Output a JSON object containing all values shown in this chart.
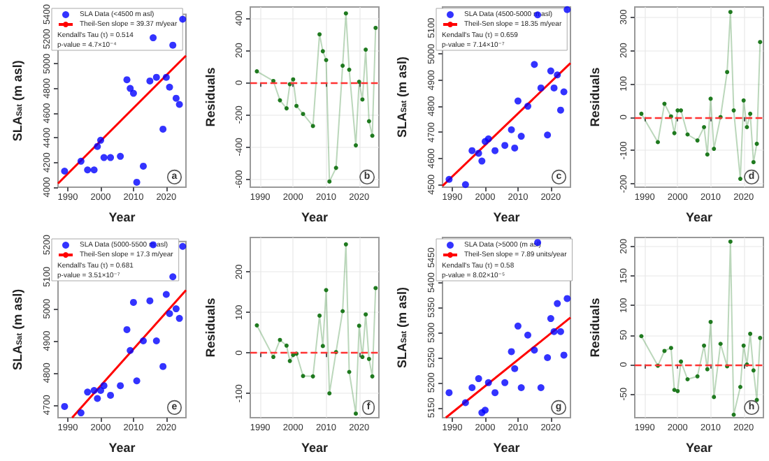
{
  "chart_data": [
    {
      "type": "scatter",
      "xlabel": "Year",
      "ylabel": "SLA$_{Sat}$ (m asl)",
      "xlim": [
        1987,
        2026
      ],
      "xticks": [
        1990,
        2000,
        2010,
        2020
      ],
      "ylim": [
        4000,
        5400
      ],
      "yticks": [
        4000,
        4200,
        4400,
        4600,
        4800,
        5000,
        5200,
        5400
      ],
      "legend": "top left",
      "marker": "circle",
      "x": [
        1989,
        1994,
        1996,
        1998,
        1999,
        2000,
        2001,
        2003,
        2006,
        2008,
        2009,
        2010,
        2011,
        2013,
        2015,
        2016,
        2017,
        2019,
        2020,
        2021,
        2022,
        2023,
        2024,
        2025
      ],
      "series": [
        {
          "name": "SLA Data (<4500 m asl)",
          "color": "#0000ff",
          "values": [
            4130,
            4210,
            4140,
            4140,
            4330,
            4380,
            4240,
            4240,
            4250,
            4870,
            4800,
            4760,
            4040,
            4170,
            4860,
            5210,
            4890,
            4470,
            4890,
            4810,
            5150,
            4720,
            4670,
            5360
          ]
        },
        {
          "name": "Theil-Sen slope = 39.37 m/year",
          "type": "line",
          "marker": "none",
          "color": "#ff0000",
          "x": [
            1987,
            2026
          ],
          "values": [
            4030,
            5065
          ]
        }
      ],
      "annotations": [
        "Kendall's Tau (τ) = 0.514",
        "p-value = 4.7×10⁻⁴",
        "a"
      ]
    },
    {
      "type": "line",
      "xlabel": "Year",
      "ylabel": "Residuals",
      "xlim": [
        1987,
        2026
      ],
      "xticks": [
        1990,
        2000,
        2010,
        2020
      ],
      "ylim": [
        -650,
        470
      ],
      "yticks": [
        -600,
        -400,
        -200,
        0,
        200,
        400
      ],
      "grid": true,
      "marker": "circle",
      "x": [
        1989,
        1994,
        1996,
        1998,
        1999,
        2000,
        2001,
        2003,
        2006,
        2008,
        2009,
        2010,
        2011,
        2013,
        2015,
        2016,
        2017,
        2019,
        2020,
        2021,
        2022,
        2023,
        2024,
        2025
      ],
      "series": [
        {
          "color": "#1f7a1f",
          "values": [
            70,
            10,
            -110,
            -160,
            -10,
            20,
            -145,
            -195,
            -270,
            300,
            195,
            140,
            -615,
            -530,
            105,
            430,
            80,
            -390,
            5,
            -105,
            205,
            -240,
            -330,
            340
          ]
        }
      ],
      "ref_lines": [
        {
          "axis": "y",
          "value": 0,
          "color": "#ff3333",
          "line_style": "dashed"
        }
      ],
      "annotations": [
        "b"
      ]
    },
    {
      "type": "scatter",
      "xlabel": "Year",
      "ylabel": "SLA$_{Sat}$ (m asl)",
      "xlim": [
        1987,
        2026
      ],
      "xticks": [
        1990,
        2000,
        2010,
        2020
      ],
      "ylim": [
        4490,
        5180
      ],
      "yticks": [
        4500,
        4600,
        4700,
        4800,
        4900,
        5000,
        5100
      ],
      "legend": "top left",
      "marker": "circle",
      "x": [
        1989,
        1994,
        1996,
        1998,
        1999,
        2000,
        2001,
        2003,
        2006,
        2008,
        2009,
        2010,
        2011,
        2013,
        2015,
        2016,
        2017,
        2019,
        2020,
        2021,
        2022,
        2023,
        2024,
        2025
      ],
      "series": [
        {
          "name": "SLA Data (4500-5000 m asl)",
          "color": "#0000ff",
          "values": [
            4520,
            4500,
            4630,
            4620,
            4590,
            4665,
            4675,
            4630,
            4650,
            4710,
            4640,
            4820,
            4685,
            4800,
            4960,
            5150,
            4870,
            4690,
            4935,
            4870,
            4920,
            4785,
            4855,
            5170
          ]
        },
        {
          "name": "Theil-Sen slope = 18.35 m/year",
          "type": "line",
          "marker": "none",
          "color": "#ff0000",
          "x": [
            1987,
            2026
          ],
          "values": [
            4495,
            4965
          ]
        }
      ],
      "annotations": [
        "Kendall's Tau (τ) = 0.659",
        "p-value = 7.14×10⁻⁷",
        "c"
      ]
    },
    {
      "type": "line",
      "xlabel": "Year",
      "ylabel": "Residuals",
      "xlim": [
        1987,
        2026
      ],
      "xticks": [
        1990,
        2000,
        2010,
        2020
      ],
      "ylim": [
        -210,
        330
      ],
      "yticks": [
        -200,
        -100,
        0,
        100,
        200,
        300
      ],
      "grid": true,
      "marker": "circle",
      "x": [
        1989,
        1994,
        1996,
        1998,
        1999,
        2000,
        2001,
        2003,
        2006,
        2008,
        2009,
        2010,
        2011,
        2013,
        2015,
        2016,
        2017,
        2019,
        2020,
        2021,
        2022,
        2023,
        2024,
        2025
      ],
      "series": [
        {
          "color": "#1f7a1f",
          "values": [
            10,
            -75,
            40,
            2,
            -48,
            20,
            20,
            -52,
            -70,
            -30,
            -112,
            55,
            -95,
            0,
            135,
            315,
            20,
            -185,
            50,
            -30,
            10,
            -135,
            -80,
            225
          ]
        }
      ],
      "ref_lines": [
        {
          "axis": "y",
          "value": 0,
          "color": "#ff3333",
          "line_style": "dashed"
        }
      ],
      "annotations": [
        "d"
      ]
    },
    {
      "type": "scatter",
      "xlabel": "Year",
      "ylabel": "SLA$_{Sat}$ (m asl)",
      "xlim": [
        1987,
        2026
      ],
      "xticks": [
        1990,
        2000,
        2010,
        2020
      ],
      "ylim": [
        4660,
        5210
      ],
      "yticks": [
        4700,
        4800,
        4900,
        5000,
        5100,
        5200
      ],
      "legend": "top left",
      "marker": "circle",
      "x": [
        1989,
        1994,
        1996,
        1998,
        1999,
        2000,
        2001,
        2003,
        2006,
        2008,
        2009,
        2010,
        2011,
        2013,
        2015,
        2016,
        2017,
        2019,
        2020,
        2021,
        2022,
        2023,
        2024,
        2025
      ],
      "series": [
        {
          "name": "SLA Data (5000-5500 m asl)",
          "color": "#0000ff",
          "values": [
            4695,
            4675,
            4740,
            4745,
            4720,
            4745,
            4760,
            4730,
            4760,
            4935,
            4870,
            5020,
            4775,
            4900,
            5025,
            5200,
            4900,
            4820,
            5045,
            4985,
            5100,
            5000,
            4970,
            5195
          ]
        },
        {
          "name": "Theil-Sen slope = 17.3 m/year",
          "type": "line",
          "marker": "none",
          "color": "#ff0000",
          "x": [
            1991.3,
            2026
          ],
          "values": [
            4660,
            5058
          ]
        }
      ],
      "annotations": [
        "Kendall's Tau (τ) = 0.681",
        "p-value = 3.51×10⁻⁷",
        "e"
      ]
    },
    {
      "type": "line",
      "xlabel": "Year",
      "ylabel": "Residuals",
      "xlim": [
        1987,
        2026
      ],
      "xticks": [
        1990,
        2000,
        2010,
        2020
      ],
      "ylim": [
        -160,
        285
      ],
      "yticks": [
        -100,
        0,
        100,
        200
      ],
      "grid": true,
      "marker": "circle",
      "x": [
        1989,
        1994,
        1996,
        1998,
        1999,
        2000,
        2001,
        2003,
        2006,
        2008,
        2009,
        2010,
        2011,
        2013,
        2015,
        2016,
        2017,
        2019,
        2020,
        2021,
        2022,
        2023,
        2024,
        2025
      ],
      "series": [
        {
          "color": "#1f7a1f",
          "values": [
            68,
            -10,
            32,
            18,
            -20,
            -5,
            -2,
            -57,
            -58,
            92,
            17,
            155,
            -100,
            2,
            103,
            268,
            -47,
            -150,
            67,
            -10,
            95,
            -15,
            -58,
            160
          ]
        }
      ],
      "ref_lines": [
        {
          "axis": "y",
          "value": 0,
          "color": "#ff3333",
          "line_style": "dashed"
        }
      ],
      "annotations": [
        "f"
      ]
    },
    {
      "type": "scatter",
      "xlabel": "Year",
      "ylabel": "SLA$_{Sat}$ (m asl)",
      "xlim": [
        1987,
        2026
      ],
      "xticks": [
        1990,
        2000,
        2010,
        2020
      ],
      "ylim": [
        5130,
        5490
      ],
      "yticks": [
        5150,
        5200,
        5250,
        5300,
        5350,
        5400,
        5450
      ],
      "legend": "top left",
      "marker": "circle",
      "x": [
        1989,
        1994,
        1996,
        1998,
        1999,
        2000,
        2001,
        2003,
        2006,
        2008,
        2009,
        2010,
        2011,
        2013,
        2015,
        2016,
        2017,
        2019,
        2020,
        2021,
        2022,
        2023,
        2024,
        2025
      ],
      "series": [
        {
          "name": "SLA Data (>5000 (m asl)",
          "color": "#0000ff",
          "values": [
            5180,
            5160,
            5190,
            5208,
            5140,
            5145,
            5200,
            5180,
            5200,
            5262,
            5228,
            5313,
            5190,
            5295,
            5265,
            5480,
            5190,
            5250,
            5328,
            5302,
            5358,
            5302,
            5255,
            5368
          ]
        },
        {
          "name": "Theil-Sen slope = 7.89 units/year",
          "type": "line",
          "marker": "none",
          "color": "#ff0000",
          "x": [
            1988,
            2026
          ],
          "values": [
            5130,
            5330
          ]
        }
      ],
      "annotations": [
        "Kendall's Tau (τ) = 0.58",
        "p-value = 8.02×10⁻⁵",
        "g"
      ]
    },
    {
      "type": "line",
      "xlabel": "Year",
      "ylabel": "Residuals",
      "xlim": [
        1987,
        2026
      ],
      "xticks": [
        1990,
        2000,
        2010,
        2020
      ],
      "ylim": [
        -90,
        215
      ],
      "yticks": [
        -50,
        0,
        50,
        100,
        150,
        200
      ],
      "grid": true,
      "marker": "circle",
      "x": [
        1989,
        1994,
        1996,
        1998,
        1999,
        2000,
        2001,
        2003,
        2006,
        2008,
        2009,
        2010,
        2011,
        2013,
        2015,
        2016,
        2017,
        2019,
        2020,
        2021,
        2022,
        2023,
        2024,
        2025
      ],
      "series": [
        {
          "color": "#1f7a1f",
          "values": [
            48,
            -2,
            23,
            28,
            -43,
            -45,
            5,
            -25,
            -20,
            32,
            -8,
            72,
            -55,
            35,
            -3,
            208,
            -85,
            -38,
            32,
            0,
            52,
            -10,
            -60,
            45
          ]
        }
      ],
      "ref_lines": [
        {
          "axis": "y",
          "value": 0,
          "color": "#ff3333",
          "line_style": "dashed"
        }
      ],
      "annotations": [
        "h"
      ]
    }
  ]
}
